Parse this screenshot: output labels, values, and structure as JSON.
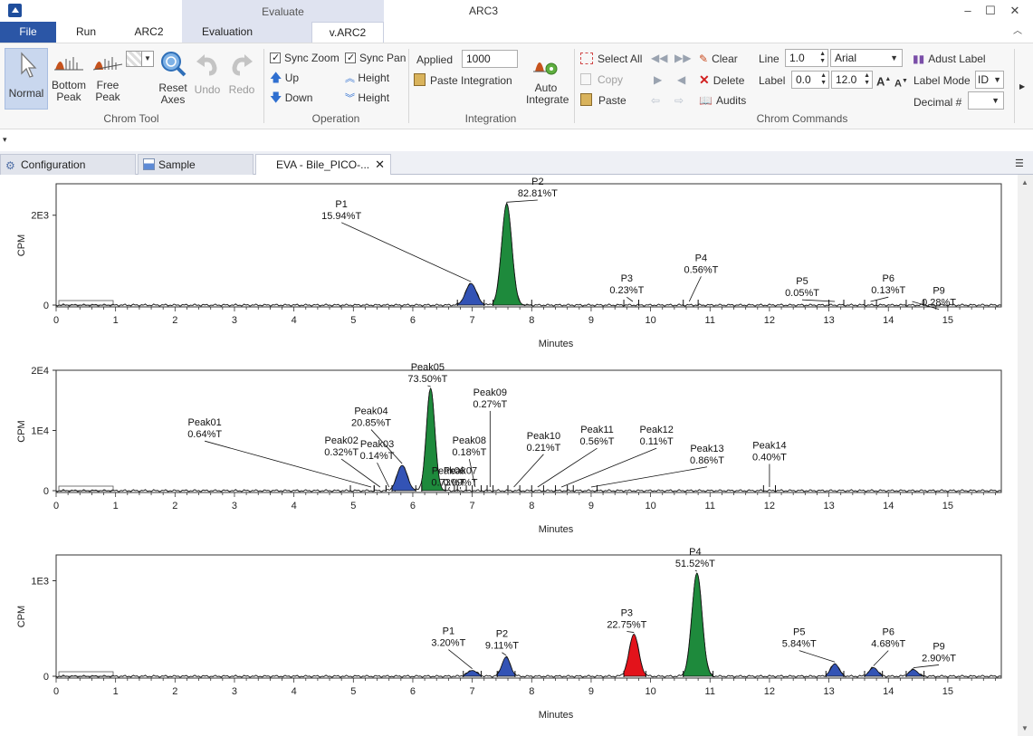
{
  "window": {
    "title": "ARC3",
    "context_tab": "Evaluate",
    "controls": [
      "–",
      "☐",
      "✕"
    ]
  },
  "tabs": [
    {
      "label": "File",
      "x": 0,
      "w": 62,
      "style": "file"
    },
    {
      "label": "Run",
      "x": 62,
      "w": 66,
      "style": ""
    },
    {
      "label": "ARC2",
      "x": 128,
      "w": 73,
      "style": ""
    },
    {
      "label": "Evaluation",
      "x": 201,
      "w": 100,
      "style": "eval"
    },
    {
      "label": "v.ARC2",
      "x": 344,
      "w": 80,
      "style": "varc"
    }
  ],
  "ribbon": {
    "chrom_tool": {
      "label": "Chrom Tool",
      "normal": "Normal",
      "bottom_peak": [
        "Bottom",
        "Peak"
      ],
      "free_peak": [
        "Free",
        "Peak"
      ],
      "reset_axes": [
        "Reset",
        "Axes"
      ],
      "undo": "Undo",
      "redo": "Redo"
    },
    "operation": {
      "label": "Operation",
      "sync_zoom": "Sync Zoom",
      "sync_pan": "Sync Pan",
      "up": "Up",
      "down": "Down",
      "height_up": "Height",
      "height_down": "Height"
    },
    "integration": {
      "label": "Integration",
      "applied_label": "Applied",
      "applied_value": "1000",
      "paste_integration": "Paste Integration",
      "auto_integrate": [
        "Auto",
        "Integrate"
      ]
    },
    "chrom_commands": {
      "label": "Chrom Commands",
      "select_all": "Select All",
      "copy": "Copy",
      "paste": "Paste",
      "clear": "Clear",
      "delete": "Delete",
      "audits": "Audits",
      "line_label": "Line",
      "line_value": "1.0",
      "font_value": "Arial",
      "label_label": "Label",
      "label_value": "0.0",
      "font_size": "12.0",
      "adjust_label": "Adust Label",
      "label_mode": "Label Mode",
      "label_mode_value": "ID",
      "decimal": "Decimal #"
    }
  },
  "doc_tabs": [
    {
      "label": "Configuration"
    },
    {
      "label": "Sample"
    },
    {
      "label": "EVA - Bile_PICO-...",
      "close": "✕"
    }
  ],
  "colors": {
    "blue": "#3353b5",
    "green": "#1e8a3c",
    "red": "#e3131b",
    "file_tab": "#2b56a6"
  },
  "chart_data": [
    {
      "type": "line",
      "title": "",
      "xlabel": "Minutes",
      "ylabel": "CPM",
      "xlim": [
        0,
        15.9
      ],
      "ylim": [
        0,
        2700
      ],
      "xticks": [
        "0",
        "1",
        "2",
        "3",
        "4",
        "5",
        "6",
        "7",
        "8",
        "9",
        "10",
        "11",
        "12",
        "13",
        "14",
        "15"
      ],
      "yticks": [
        {
          "v": 0,
          "t": "0"
        },
        {
          "v": 2000,
          "t": "2E3"
        }
      ],
      "peaks": [
        {
          "name": "P1",
          "pct": "15.94%T",
          "center": 6.98,
          "height": 480,
          "width": 0.09,
          "fill": "blue",
          "label_x": 4.8,
          "label_v": 2180,
          "start": 6.75,
          "end": 7.2
        },
        {
          "name": "P2",
          "pct": "82.81%T",
          "center": 7.58,
          "height": 2250,
          "width": 0.085,
          "fill": "green",
          "label_x": 8.1,
          "label_v": 2680,
          "start": 7.35,
          "end": 8.0
        },
        {
          "name": "P3",
          "pct": "0.23%T",
          "center": 9.7,
          "height": 0,
          "width": 0.05,
          "fill": "none",
          "label_x": 9.6,
          "label_v": 520,
          "start": 9.55,
          "end": 9.8
        },
        {
          "name": "P4",
          "pct": "0.56%T",
          "center": 10.65,
          "height": 0,
          "width": 0.05,
          "fill": "none",
          "label_x": 10.85,
          "label_v": 980,
          "start": 10.55,
          "end": 10.8
        },
        {
          "name": "P5",
          "pct": "0.05%T",
          "center": 13.1,
          "height": 0,
          "width": 0.05,
          "fill": "none",
          "label_x": 12.55,
          "label_v": 460,
          "start": 13.0,
          "end": 13.25
        },
        {
          "name": "P6",
          "pct": "0.13%T",
          "center": 13.7,
          "height": 0,
          "width": 0.05,
          "fill": "none",
          "label_x": 14.0,
          "label_v": 520,
          "start": 13.6,
          "end": 13.8
        },
        {
          "name": "P9",
          "pct": "0.28%T",
          "center": 14.4,
          "height": 0,
          "width": 0.05,
          "fill": "none",
          "label_x": 14.85,
          "label_v": 250,
          "start": 14.3,
          "end": 14.6
        }
      ]
    },
    {
      "type": "line",
      "title": "",
      "xlabel": "Minutes",
      "ylabel": "CPM",
      "xlim": [
        0,
        15.9
      ],
      "ylim": [
        0,
        20000
      ],
      "xticks": [
        "0",
        "1",
        "2",
        "3",
        "4",
        "5",
        "6",
        "7",
        "8",
        "9",
        "10",
        "11",
        "12",
        "13",
        "14",
        "15"
      ],
      "yticks": [
        {
          "v": 0,
          "t": "0"
        },
        {
          "v": 10000,
          "t": "1E4"
        },
        {
          "v": 20000,
          "t": "2E4"
        }
      ],
      "peaks": [
        {
          "name": "Peak01",
          "pct": "0.64%T",
          "center": 5.3,
          "height": 0,
          "width": 0.05,
          "fill": "none",
          "label_x": 2.5,
          "label_v": 10800,
          "start": 4.95,
          "end": 5.35
        },
        {
          "name": "Peak02",
          "pct": "0.32%T",
          "center": 5.45,
          "height": 0,
          "width": 0.05,
          "fill": "none",
          "label_x": 4.8,
          "label_v": 7800,
          "start": 5.35,
          "end": 5.55
        },
        {
          "name": "Peak03",
          "pct": "0.14%T",
          "center": 5.6,
          "height": 0,
          "width": 0.05,
          "fill": "none",
          "label_x": 5.4,
          "label_v": 7200,
          "start": 5.55,
          "end": 5.7
        },
        {
          "name": "Peak04",
          "pct": "20.85%T",
          "center": 5.82,
          "height": 4200,
          "width": 0.085,
          "fill": "blue",
          "label_x": 5.3,
          "label_v": 12700,
          "start": 5.65,
          "end": 6.05
        },
        {
          "name": "Peak05",
          "pct": "73.50%T",
          "center": 6.3,
          "height": 17000,
          "width": 0.07,
          "fill": "green",
          "label_x": 6.25,
          "label_v": 20000,
          "start": 6.15,
          "end": 6.55
        },
        {
          "name": "Peak06",
          "pct": "0.73%T",
          "center": 6.62,
          "height": 0,
          "width": 0.05,
          "fill": "none",
          "label_x": 6.6,
          "label_v": 2800,
          "start": 6.55,
          "end": 6.7
        },
        {
          "name": "Peak07",
          "pct": "0.09%T",
          "center": 6.8,
          "height": 0,
          "width": 0.05,
          "fill": "none",
          "label_x": 6.8,
          "label_v": 2800,
          "start": 6.75,
          "end": 6.9
        },
        {
          "name": "Peak08",
          "pct": "0.18%T",
          "center": 7.05,
          "height": 0,
          "width": 0.05,
          "fill": "none",
          "label_x": 6.95,
          "label_v": 7800,
          "start": 7.0,
          "end": 7.15
        },
        {
          "name": "Peak09",
          "pct": "0.27%T",
          "center": 7.3,
          "height": 0,
          "width": 0.05,
          "fill": "none",
          "label_x": 7.3,
          "label_v": 15800,
          "start": 7.25,
          "end": 7.35
        },
        {
          "name": "Peak10",
          "pct": "0.21%T",
          "center": 7.7,
          "height": 0,
          "width": 0.05,
          "fill": "none",
          "label_x": 8.2,
          "label_v": 8600,
          "start": 7.6,
          "end": 7.8
        },
        {
          "name": "Peak11",
          "pct": "0.56%T",
          "center": 8.1,
          "height": 0,
          "width": 0.05,
          "fill": "none",
          "label_x": 9.1,
          "label_v": 9600,
          "start": 8.0,
          "end": 8.2
        },
        {
          "name": "Peak12",
          "pct": "0.11%T",
          "center": 8.5,
          "height": 0,
          "width": 0.05,
          "fill": "none",
          "label_x": 10.1,
          "label_v": 9600,
          "start": 8.4,
          "end": 8.6
        },
        {
          "name": "Peak13",
          "pct": "0.86%T",
          "center": 9.0,
          "height": 0,
          "width": 0.05,
          "fill": "none",
          "label_x": 10.95,
          "label_v": 6500,
          "start": 8.7,
          "end": 9.1
        },
        {
          "name": "Peak14",
          "pct": "0.40%T",
          "center": 12.0,
          "height": 0,
          "width": 0.05,
          "fill": "none",
          "label_x": 12.0,
          "label_v": 7000,
          "start": 11.9,
          "end": 12.1
        }
      ]
    },
    {
      "type": "line",
      "title": "",
      "xlabel": "Minutes",
      "ylabel": "CPM",
      "xlim": [
        0,
        15.9
      ],
      "ylim": [
        0,
        1270
      ],
      "xticks": [
        "0",
        "1",
        "2",
        "3",
        "4",
        "5",
        "6",
        "7",
        "8",
        "9",
        "10",
        "11",
        "12",
        "13",
        "14",
        "15"
      ],
      "yticks": [
        {
          "v": 0,
          "t": "0"
        },
        {
          "v": 1000,
          "t": "1E3"
        }
      ],
      "peaks": [
        {
          "name": "P1",
          "pct": "3.20%T",
          "center": 7.0,
          "height": 60,
          "width": 0.08,
          "fill": "blue",
          "label_x": 6.6,
          "label_v": 440,
          "start": 6.85,
          "end": 7.15
        },
        {
          "name": "P2",
          "pct": "9.11%T",
          "center": 7.57,
          "height": 200,
          "width": 0.07,
          "fill": "blue",
          "label_x": 7.5,
          "label_v": 410,
          "start": 7.42,
          "end": 7.72
        },
        {
          "name": "P3",
          "pct": "22.75%T",
          "center": 9.72,
          "height": 440,
          "width": 0.08,
          "fill": "red",
          "label_x": 9.6,
          "label_v": 630,
          "start": 9.55,
          "end": 9.92
        },
        {
          "name": "P4",
          "pct": "51.52%T",
          "center": 10.78,
          "height": 1080,
          "width": 0.085,
          "fill": "green",
          "label_x": 10.75,
          "label_v": 1270,
          "start": 10.55,
          "end": 11.05
        },
        {
          "name": "P5",
          "pct": "5.84%T",
          "center": 13.1,
          "height": 130,
          "width": 0.07,
          "fill": "blue",
          "label_x": 12.5,
          "label_v": 430,
          "start": 12.95,
          "end": 13.25
        },
        {
          "name": "P6",
          "pct": "4.68%T",
          "center": 13.75,
          "height": 90,
          "width": 0.07,
          "fill": "blue",
          "label_x": 14.0,
          "label_v": 430,
          "start": 13.6,
          "end": 13.9
        },
        {
          "name": "P9",
          "pct": "2.90%T",
          "center": 14.42,
          "height": 70,
          "width": 0.07,
          "fill": "blue",
          "label_x": 14.85,
          "label_v": 280,
          "start": 14.3,
          "end": 14.6
        }
      ]
    }
  ]
}
